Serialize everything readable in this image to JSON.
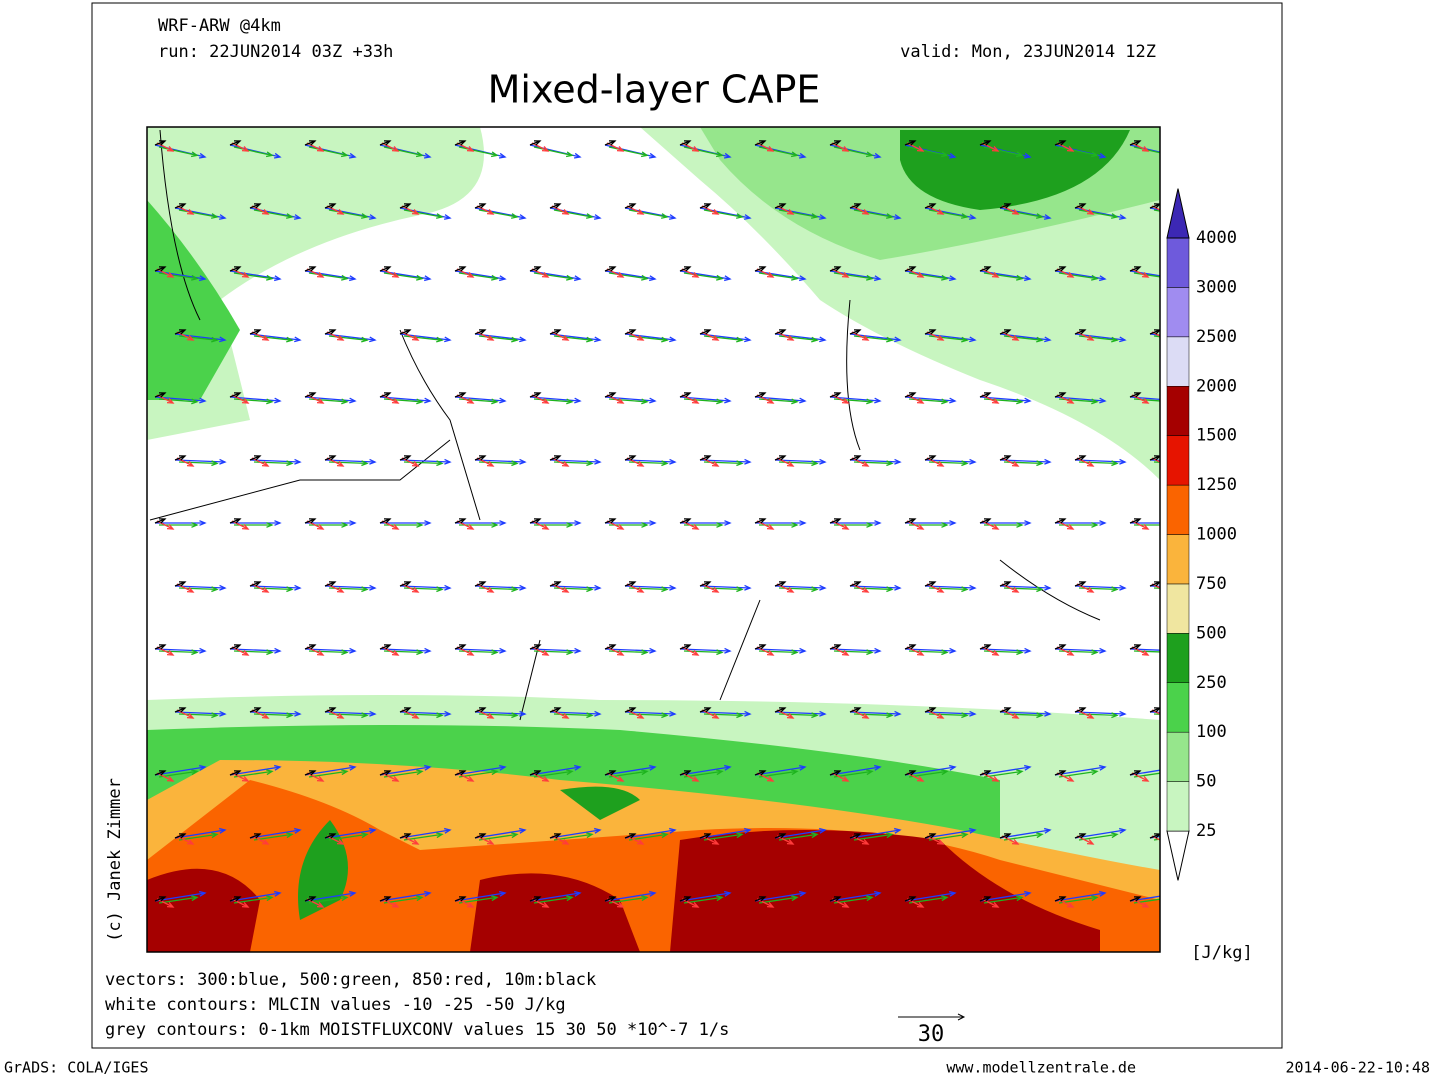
{
  "header": {
    "model": "WRF-ARW @4km",
    "run": "run: 22JUN2014 03Z +33h",
    "valid": "valid: Mon, 23JUN2014 12Z",
    "title": "Mixed-layer CAPE"
  },
  "credit": "(c) Janek Zimmer",
  "colorbar": {
    "levels": [
      25,
      50,
      100,
      250,
      500,
      750,
      1000,
      1250,
      1500,
      2000,
      2500,
      3000,
      4000
    ],
    "colors": [
      "#ffffff",
      "#c8f5c0",
      "#96e68c",
      "#4bd24b",
      "#1ea01e",
      "#f0e6a0",
      "#fab43c",
      "#fa6400",
      "#e61400",
      "#a50000",
      "#dcdcf5",
      "#a08cf0",
      "#6e5adc",
      "#3c28b4"
    ],
    "unit": "[J/kg]"
  },
  "notes": [
    "vectors: 300:blue, 500:green, 850:red, 10m:black",
    "white contours: MLCIN values -10 -25 -50 J/kg",
    "grey contours: 0-1km MOISTFLUXCONV values 15 30 50 *10^-7 1/s"
  ],
  "vector_scale": "30",
  "footer": {
    "software": "GrADS: COLA/IGES",
    "site": "www.modellzentrale.de",
    "timestamp": "2014-06-22-10:48"
  }
}
